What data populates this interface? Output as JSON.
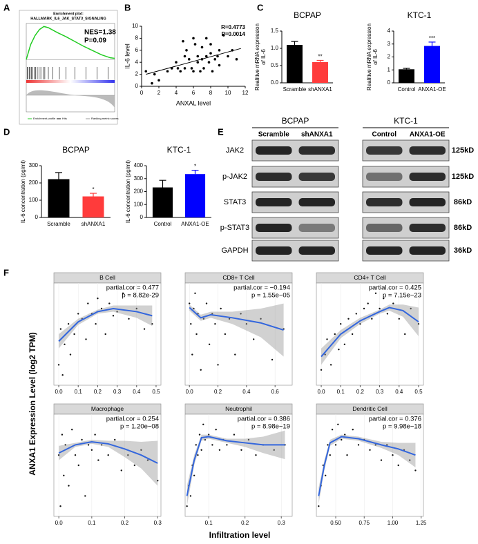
{
  "panel_labels": [
    "A",
    "B",
    "C",
    "D",
    "E",
    "F"
  ],
  "chart_data": [
    {
      "type": "gsea",
      "title": "Enrichment plot:",
      "subtitle": "HALLMARK_IL6_JAK_STAT3_SIGNALING",
      "annotations": [
        "NES=1.38",
        "P=0.09"
      ],
      "x": [
        0,
        1000,
        2000,
        3000,
        4000,
        5000,
        7000,
        9000,
        11000,
        13000,
        15000,
        17000,
        19000,
        20000
      ],
      "values": [
        0,
        0.25,
        0.4,
        0.5,
        0.55,
        0.53,
        0.45,
        0.38,
        0.3,
        0.22,
        0.15,
        0.08,
        0.03,
        0.02
      ],
      "color": "#22cc22",
      "hits": [
        200,
        400,
        700,
        900,
        1200,
        1500,
        1800,
        2100,
        2500,
        2900,
        3300,
        3800,
        4200,
        5000,
        6000,
        7500,
        9000,
        11000,
        13500,
        16000,
        18500
      ],
      "xlim": [
        0,
        20000
      ],
      "ylim": [
        -0.1,
        0.6
      ],
      "legend": [
        "Enrichment profile",
        "Hits",
        "Ranking metric scores"
      ]
    },
    {
      "type": "scatter",
      "ylabel": "IL-6 level",
      "xlabel": "ANXAL level",
      "annotations": [
        "R=0.4773",
        "P=0.0014"
      ],
      "x": [
        0.5,
        1.2,
        1.5,
        2,
        3,
        3.5,
        4,
        4.2,
        4.5,
        4.8,
        5,
        5,
        5.2,
        5.5,
        5.8,
        6,
        6,
        6.2,
        6.5,
        6.5,
        6.8,
        7,
        7,
        7.2,
        7.5,
        7.5,
        7.8,
        8,
        8,
        8.2,
        8.5,
        8.8,
        9,
        9,
        9.5,
        10,
        10.5,
        11
      ],
      "y": [
        2.5,
        0.5,
        2,
        1,
        2.5,
        3,
        4,
        3,
        2.5,
        7.5,
        5,
        3,
        6,
        4.5,
        3,
        2.5,
        8,
        7,
        4,
        5,
        2.5,
        6.5,
        4.5,
        3,
        5,
        8,
        4,
        5.5,
        7,
        2.5,
        4.5,
        5,
        6,
        3.5,
        8.5,
        5,
        6,
        4.5
      ],
      "fit": {
        "x": [
          0.5,
          11.5
        ],
        "y": [
          2.0,
          6.3
        ]
      },
      "color": "#000000",
      "xlim": [
        0,
        12
      ],
      "xticks": [
        0,
        2,
        4,
        6,
        8,
        10,
        12
      ],
      "ylim": [
        0,
        10
      ],
      "yticks": [
        0,
        2,
        4,
        6,
        8,
        10
      ]
    },
    {
      "type": "bar",
      "title": "BCPAP",
      "ylabel": [
        "Realitive mRNA expression",
        "of IL-6"
      ],
      "categories": [
        "Scramble",
        "shANXA1"
      ],
      "values": [
        1.1,
        0.6
      ],
      "errors": [
        0.1,
        0.05
      ],
      "significance": [
        null,
        "**"
      ],
      "colors": [
        "#000000",
        "#ff3b3b"
      ],
      "ylim": [
        0,
        1.5
      ],
      "yticks": [
        {
          "value": 0,
          "label": "0.0"
        },
        0.5,
        {
          "value": 1,
          "label": "1.0"
        },
        1.5
      ]
    },
    {
      "type": "bar",
      "title": "KTC-1",
      "ylabel": [
        "Realitive mRNA expression",
        "of IL-6"
      ],
      "categories": [
        "Control",
        "ANXA1-OE"
      ],
      "values": [
        1.05,
        2.85
      ],
      "errors": [
        0.07,
        0.3
      ],
      "significance": [
        null,
        "***"
      ],
      "colors": [
        "#000000",
        "#0000ff"
      ],
      "ylim": [
        0,
        4
      ],
      "yticks": [
        0,
        1,
        2,
        3,
        4
      ]
    },
    {
      "type": "bar",
      "title": "BCPAP",
      "ylabel": [
        "IL-6 concentration (pg/ml)"
      ],
      "categories": [
        "Scramble",
        "shANXA1"
      ],
      "values": [
        222,
        122
      ],
      "errors": [
        38,
        18
      ],
      "significance": [
        null,
        "*"
      ],
      "colors": [
        "#000000",
        "#ff3b3b"
      ],
      "ylim": [
        0,
        300
      ],
      "yticks": [
        0,
        100,
        200,
        300
      ]
    },
    {
      "type": "bar",
      "title": "KTC-1",
      "ylabel": [
        "IL-6 concentration (pg/ml)"
      ],
      "categories": [
        "Control",
        "ANXA1-OE"
      ],
      "values": [
        232,
        335
      ],
      "errors": [
        55,
        30
      ],
      "significance": [
        null,
        "*"
      ],
      "colors": [
        "#000000",
        "#0000ff"
      ],
      "ylim": [
        0,
        400
      ],
      "yticks": [
        0,
        100,
        200,
        300,
        400
      ]
    },
    {
      "type": "facet",
      "title": "B Cell",
      "annotations": [
        "partial.cor = 0.477",
        "p = 8.82e-29"
      ],
      "x": [
        0,
        0.01,
        0.02,
        0.03,
        0.05,
        0.06,
        0.08,
        0.1,
        0.12,
        0.14,
        0.15,
        0.17,
        0.19,
        0.2,
        0.22,
        0.24,
        0.26,
        0.28,
        0.3,
        0.33,
        0.36,
        0.4,
        0.44,
        0.48
      ],
      "y": [
        2,
        5.5,
        1,
        4,
        6,
        3,
        5,
        7,
        6.5,
        4.5,
        8,
        7,
        6,
        8.5,
        7.5,
        5,
        8,
        6.8,
        7.2,
        9,
        6.5,
        7.5,
        5.5,
        6
      ],
      "curve": {
        "x": [
          0,
          0.1,
          0.2,
          0.28,
          0.4,
          0.48
        ],
        "y": [
          4.3,
          6.2,
          7.2,
          7.5,
          7.2,
          6.8
        ],
        "lower": [
          3.6,
          5.9,
          7.0,
          7.2,
          6.6,
          5.8
        ],
        "upper": [
          5.0,
          6.5,
          7.4,
          7.8,
          7.8,
          7.8
        ]
      },
      "xlim": [
        -0.025,
        0.525
      ],
      "xticks": [
        {
          "value": 0,
          "label": "0.0"
        },
        0.1,
        0.2,
        0.3,
        0.4,
        0.5
      ],
      "ylim": [
        0,
        10
      ]
    },
    {
      "type": "facet",
      "title": "CD8+ T Cell",
      "annotations": [
        "partial.cor = −0.194",
        "p = 1.55e−05"
      ],
      "x": [
        0,
        0.01,
        0.02,
        0.03,
        0.04,
        0.05,
        0.06,
        0.08,
        0.1,
        0.12,
        0.14,
        0.16,
        0.18,
        0.2,
        0.22,
        0.25,
        0.28,
        0.32,
        0.36,
        0.4,
        0.45,
        0.5,
        0.58,
        0.66
      ],
      "y": [
        8,
        6,
        3,
        7.5,
        9,
        5,
        7,
        1.5,
        6.5,
        8,
        4,
        7,
        6,
        2,
        7.5,
        5,
        6.5,
        3,
        7,
        6,
        4.5,
        6.5,
        2.5,
        5.5
      ],
      "curve": {
        "x": [
          0,
          0.08,
          0.15,
          0.3,
          0.5,
          0.66
        ],
        "y": [
          7.6,
          6.6,
          6.9,
          6.6,
          6.1,
          5.4
        ],
        "lower": [
          7.3,
          6.3,
          6.6,
          6.0,
          4.7,
          2.8
        ],
        "upper": [
          7.9,
          6.9,
          7.2,
          7.2,
          7.5,
          8.0
        ]
      },
      "xlim": [
        -0.03,
        0.72
      ],
      "xticks": [
        {
          "value": 0,
          "label": "0.0"
        },
        0.2,
        0.4,
        0.6
      ],
      "ylim": [
        0,
        10
      ]
    },
    {
      "type": "facet",
      "title": "CD4+ T Cell",
      "annotations": [
        "partial.cor = 0.425",
        "p = 7.15e−23"
      ],
      "x": [
        0,
        0.02,
        0.03,
        0.05,
        0.07,
        0.09,
        0.1,
        0.12,
        0.14,
        0.16,
        0.18,
        0.2,
        0.22,
        0.24,
        0.26,
        0.28,
        0.3,
        0.32,
        0.34,
        0.37,
        0.4,
        0.43,
        0.46,
        0.5
      ],
      "y": [
        1.5,
        3,
        4.5,
        2,
        5,
        3.5,
        6,
        4,
        6.5,
        5,
        7,
        6,
        7.5,
        8,
        6.5,
        9,
        7.5,
        8.5,
        7,
        8,
        6.5,
        5,
        7.5,
        6
      ],
      "curve": {
        "x": [
          0,
          0.1,
          0.2,
          0.3,
          0.35,
          0.42,
          0.5
        ],
        "y": [
          2.8,
          5,
          6.3,
          7.2,
          7.6,
          7.3,
          6.2
        ],
        "lower": [
          2.0,
          4.6,
          6.0,
          7.0,
          7.3,
          6.7,
          4.8
        ],
        "upper": [
          3.6,
          5.4,
          6.6,
          7.4,
          7.9,
          7.9,
          7.6
        ]
      },
      "xlim": [
        -0.025,
        0.525
      ],
      "xticks": [
        {
          "value": 0,
          "label": "0.0"
        },
        0.1,
        0.2,
        0.3,
        0.4,
        0.5
      ],
      "ylim": [
        0,
        10
      ]
    },
    {
      "type": "facet",
      "title": "Macrophage",
      "annotations": [
        "partial.cor = 0.254",
        "p = 1.20e−08"
      ],
      "x": [
        0,
        0.005,
        0.01,
        0.015,
        0.02,
        0.03,
        0.04,
        0.05,
        0.06,
        0.07,
        0.08,
        0.09,
        0.1,
        0.11,
        0.12,
        0.13,
        0.15,
        0.17,
        0.19,
        0.21,
        0.23,
        0.25,
        0.27,
        0.3
      ],
      "y": [
        6,
        1,
        8,
        4,
        7,
        3,
        8.5,
        6,
        5,
        7.5,
        2,
        7,
        6.5,
        8,
        5.5,
        7,
        6,
        7.5,
        4.5,
        6,
        5,
        6.5,
        5.5,
        3.5
      ],
      "curve": {
        "x": [
          0,
          0.05,
          0.1,
          0.15,
          0.2,
          0.25,
          0.3
        ],
        "y": [
          6.2,
          7.0,
          7.3,
          7.1,
          6.6,
          6.0,
          5.2
        ],
        "lower": [
          5.5,
          6.8,
          7.1,
          6.8,
          5.8,
          4.7,
          3.0
        ],
        "upper": [
          6.9,
          7.2,
          7.5,
          7.4,
          7.4,
          7.3,
          7.4
        ]
      },
      "xlim": [
        -0.015,
        0.31
      ],
      "xticks": [
        {
          "value": 0,
          "label": "0.0"
        },
        0.1,
        0.2,
        0.3
      ],
      "ylim": [
        0,
        10
      ]
    },
    {
      "type": "facet",
      "title": "Neutrophil",
      "annotations": [
        "partial.cor = 0.386",
        "p = 8.98e−19"
      ],
      "x": [
        0.04,
        0.045,
        0.05,
        0.055,
        0.06,
        0.065,
        0.07,
        0.075,
        0.08,
        0.085,
        0.09,
        0.1,
        0.11,
        0.12,
        0.13,
        0.14,
        0.15,
        0.17,
        0.19,
        0.21,
        0.23,
        0.25,
        0.28,
        0.31
      ],
      "y": [
        1,
        3,
        2,
        5,
        4,
        7,
        6,
        8,
        6.5,
        9,
        7.5,
        8,
        7,
        8.5,
        6.5,
        7.5,
        7,
        8,
        6.5,
        7.5,
        6,
        7,
        6.5,
        7
      ],
      "curve": {
        "x": [
          0.04,
          0.06,
          0.08,
          0.1,
          0.15,
          0.2,
          0.25,
          0.31
        ],
        "y": [
          2.0,
          5.5,
          7.7,
          7.8,
          7.4,
          7.2,
          7.0,
          7.0
        ],
        "lower": [
          1.0,
          5.0,
          7.4,
          7.6,
          7.2,
          6.8,
          6.2,
          5.6
        ],
        "upper": [
          3.0,
          6.0,
          8.0,
          8.0,
          7.6,
          7.6,
          7.8,
          8.4
        ]
      },
      "xlim": [
        0.035,
        0.33
      ],
      "xticks": [
        0.1,
        0.2,
        0.3
      ],
      "ylim": [
        0,
        10
      ]
    },
    {
      "type": "facet",
      "title": "Dendritic Cell",
      "annotations": [
        "partial.cor = 0.376",
        "p = 9.98e−18"
      ],
      "x": [
        0.35,
        0.37,
        0.39,
        0.41,
        0.43,
        0.45,
        0.47,
        0.5,
        0.52,
        0.55,
        0.58,
        0.6,
        0.65,
        0.7,
        0.75,
        0.8,
        0.85,
        0.9,
        0.95,
        1.0,
        1.05,
        1.1,
        1.15,
        1.2
      ],
      "y": [
        1,
        3,
        5,
        4,
        7,
        6,
        8.5,
        7,
        9,
        7.5,
        8,
        6,
        8.5,
        7,
        7.5,
        6.5,
        7,
        5.5,
        7,
        6,
        5,
        6.5,
        5.5,
        4.5
      ],
      "curve": {
        "x": [
          0.35,
          0.4,
          0.45,
          0.55,
          0.7,
          0.9,
          1.05,
          1.2
        ],
        "y": [
          2.0,
          5.0,
          7.2,
          7.8,
          7.6,
          7.0,
          6.6,
          6.0
        ],
        "lower": [
          1.2,
          4.5,
          6.9,
          7.6,
          7.4,
          6.7,
          6.0,
          4.8
        ],
        "upper": [
          2.8,
          5.5,
          7.5,
          8.0,
          7.8,
          7.3,
          7.2,
          7.2
        ]
      },
      "xlim": [
        0.33,
        1.27
      ],
      "xticks": [
        {
          "value": 0.5,
          "label": "0.50"
        },
        0.75,
        {
          "value": 1,
          "label": "1.00"
        },
        1.25
      ],
      "ylim": [
        0,
        10
      ]
    }
  ],
  "facet_labels": {
    "ylabel": "ANXA1 Expression Level (log2 TPM)",
    "xlabel": "Infiltration level"
  },
  "blot": {
    "groups": [
      {
        "name": "BCPAP",
        "lanes": [
          "Scramble",
          "shANXA1"
        ]
      },
      {
        "name": "KTC-1",
        "lanes": [
          "Control",
          "ANXA1-OE"
        ]
      }
    ],
    "rows": [
      {
        "protein": "JAK2",
        "size": "125kD"
      },
      {
        "protein": "p-JAK2",
        "size": "125kD"
      },
      {
        "protein": "STAT3",
        "size": "86kD"
      },
      {
        "protein": "p-STAT3",
        "size": "86kD"
      },
      {
        "protein": "GAPDH",
        "size": "36kD"
      }
    ]
  }
}
